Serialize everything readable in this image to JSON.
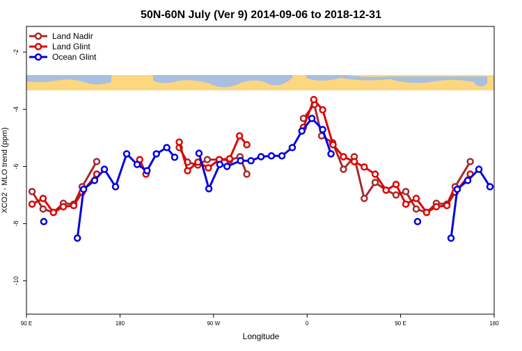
{
  "chart_data": {
    "type": "line",
    "title": "50N-60N July (Ver 9)   2014-09-06 to 2018-12-31",
    "x_label": "Longitude",
    "y_label": "XCO2 - MLO trend (ppm)",
    "xlim": [
      90,
      540
    ],
    "ylim": [
      -11.17,
      -1.1
    ],
    "xticks": [
      {
        "value": 90,
        "label": "90 E"
      },
      180,
      {
        "value": 270,
        "label": "90 W"
      },
      {
        "value": 360,
        "label": "0"
      },
      {
        "value": 450,
        "label": "90 E"
      },
      {
        "value": 540,
        "label": "180"
      }
    ],
    "yticks": [
      -10,
      -8,
      -6,
      -4,
      -2
    ],
    "legend": "top-left",
    "series": [
      {
        "name": "Land Nadir",
        "color": "#a52a2a",
        "x": [
          95.4,
          106,
          116,
          125.5,
          135.5,
          143.6,
          157.6,
          null,
          237,
          245,
          255,
          264,
          275.5,
          285.5,
          295.5,
          302,
          null,
          356.5,
          367,
          374,
          384.6,
          395,
          405.4,
          415,
          425.5,
          436,
          445.6,
          455,
          465,
          475,
          484.4,
          494.5,
          502.5,
          517
        ],
        "values": [
          -6.88,
          -7.49,
          -7.61,
          -7.29,
          -7.32,
          -6.71,
          -5.83,
          null,
          -5.34,
          -5.85,
          -5.95,
          -5.76,
          -5.76,
          -5.78,
          -5.66,
          -6.27,
          null,
          -4.32,
          -3.83,
          -4.93,
          -5.17,
          -6.1,
          -5.66,
          -7.12,
          -6.56,
          -6.83,
          -7.0,
          -6.88,
          -7.49,
          -7.61,
          -7.29,
          -7.32,
          -6.71,
          -5.83
        ]
      },
      {
        "name": "Land Glint",
        "color": "#e00000",
        "x": [
          95.4,
          106,
          116,
          125.5,
          135.5,
          143.6,
          157.6,
          null,
          199,
          205,
          null,
          237,
          245,
          255,
          265,
          275.5,
          285.5,
          295,
          302,
          null,
          356.5,
          366.5,
          375,
          385,
          395,
          405.4,
          415,
          425.5,
          436,
          445.6,
          455,
          465,
          475,
          484.4,
          494.5,
          502.5,
          517
        ],
        "values": [
          -7.32,
          -7.12,
          -7.61,
          -7.41,
          -7.37,
          -6.9,
          -6.27,
          null,
          -5.76,
          -6.27,
          null,
          -5.15,
          -6.15,
          -5.85,
          -6.05,
          -5.76,
          -5.73,
          -4.93,
          -5.24,
          null,
          -4.63,
          -3.66,
          -4.02,
          -5.24,
          -5.66,
          -5.83,
          -6.02,
          -6.27,
          -6.83,
          -6.63,
          -7.32,
          -7.12,
          -7.61,
          -7.41,
          -7.37,
          -6.9,
          -6.27
        ]
      },
      {
        "name": "Ocean Glint",
        "color": "#0000e0",
        "x": [
          106.7,
          null,
          139,
          145,
          155.6,
          165,
          175.7,
          186.4,
          196.5,
          206,
          215,
          225,
          232.6,
          null,
          256,
          265.5,
          276,
          283,
          296,
          306,
          315.7,
          325.7,
          335.8,
          345.8,
          355,
          364.6,
          375,
          383,
          null,
          466.3,
          null,
          498.5,
          504.5,
          514.6,
          525.3,
          536
        ],
        "values": [
          -7.93,
          null,
          -8.51,
          -6.8,
          -6.49,
          -6.1,
          -6.71,
          -5.56,
          -5.93,
          -6.15,
          -5.56,
          -5.34,
          -5.68,
          null,
          -5.54,
          -6.78,
          -5.93,
          -6.0,
          -5.8,
          -5.8,
          -5.66,
          -5.63,
          -5.63,
          -5.34,
          -4.76,
          -4.32,
          -4.71,
          -5.56,
          null,
          -7.93,
          null,
          -8.51,
          -6.8,
          -6.49,
          -6.1,
          -6.71
        ]
      }
    ]
  }
}
